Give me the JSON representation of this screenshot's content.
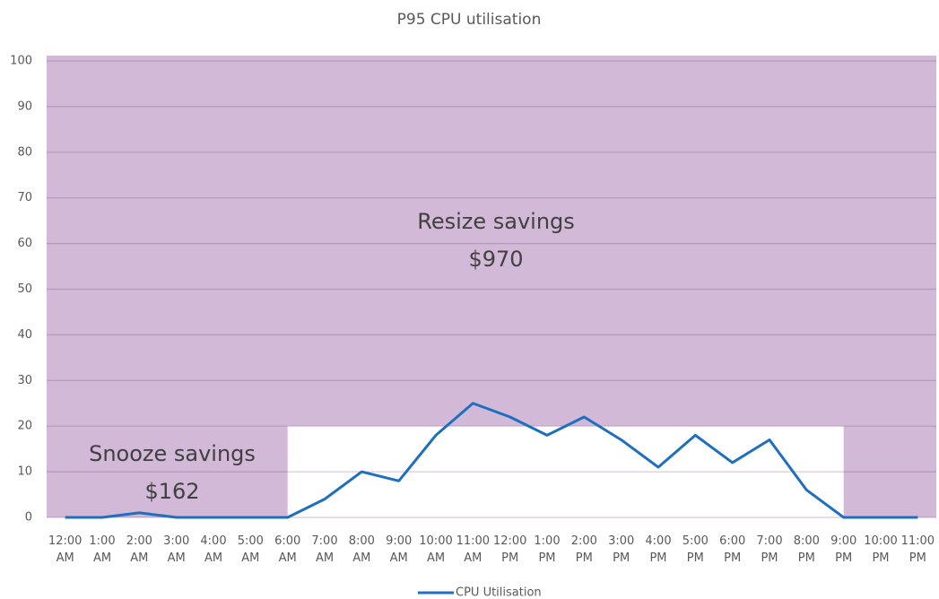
{
  "chart_data": {
    "type": "line",
    "title": "P95 CPU utilisation",
    "categories": [
      "12:00 AM",
      "1:00 AM",
      "2:00 AM",
      "3:00 AM",
      "4:00 AM",
      "5:00 AM",
      "6:00 AM",
      "7:00 AM",
      "8:00 AM",
      "9:00 AM",
      "10:00 AM",
      "11:00 AM",
      "12:00 PM",
      "1:00 PM",
      "2:00 PM",
      "3:00 PM",
      "4:00 PM",
      "5:00 PM",
      "6:00 PM",
      "7:00 PM",
      "8:00 PM",
      "9:00 PM",
      "10:00 PM",
      "11:00 PM"
    ],
    "series": [
      {
        "name": "CPU Utilisation",
        "color": "#1f6fbf",
        "values": [
          0,
          0,
          1,
          0,
          0,
          0,
          0,
          4,
          10,
          8,
          18,
          25,
          22,
          18,
          22,
          17,
          11,
          18,
          12,
          17,
          6,
          0,
          0,
          0
        ]
      }
    ],
    "ylim": [
      0,
      100
    ],
    "yticks": [
      0,
      10,
      20,
      30,
      40,
      50,
      60,
      70,
      80,
      90,
      100
    ],
    "grid": true,
    "legend": "bottom",
    "shading": {
      "color": "#d2b9d8",
      "clear_region": {
        "from": "6:00 AM",
        "to": "9:00 PM",
        "top": 20
      }
    },
    "annotations": [
      {
        "label": "Resize savings",
        "amount": "$970"
      },
      {
        "label": "Snooze savings",
        "amount": "$162"
      }
    ]
  }
}
